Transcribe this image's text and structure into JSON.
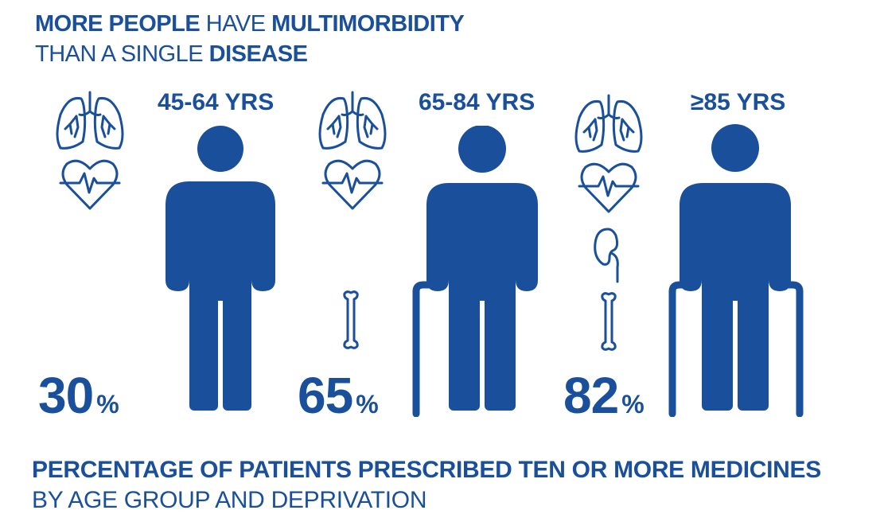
{
  "header": {
    "line1_bold_a": "MORE PEOPLE",
    "line1_light": "HAVE",
    "line1_bold_b": "MULTIMORBIDITY",
    "line2_light": "THAN A SINGLE",
    "line2_bold": "DISEASE"
  },
  "groups": [
    {
      "age_label": "45-64 YRS",
      "percent": "30",
      "percent_sign": "%",
      "percent_value": 30
    },
    {
      "age_label": "65-84 YRS",
      "percent": "65",
      "percent_sign": "%",
      "percent_value": 65
    },
    {
      "age_label": "≥85 YRS",
      "percent": "82",
      "percent_sign": "%",
      "percent_value": 82
    }
  ],
  "footer": {
    "line1": "PERCENTAGE OF PATIENTS PRESCRIBED TEN OR MORE MEDICINES",
    "line2": "BY AGE GROUP AND DEPRIVATION"
  },
  "colors": {
    "primary": "#1a4f9c",
    "background": "#ffffff"
  },
  "icons": [
    "lungs-icon",
    "heart-pulse-icon",
    "bone-icon",
    "kidney-icon",
    "person-icon",
    "walking-stick-icon"
  ]
}
